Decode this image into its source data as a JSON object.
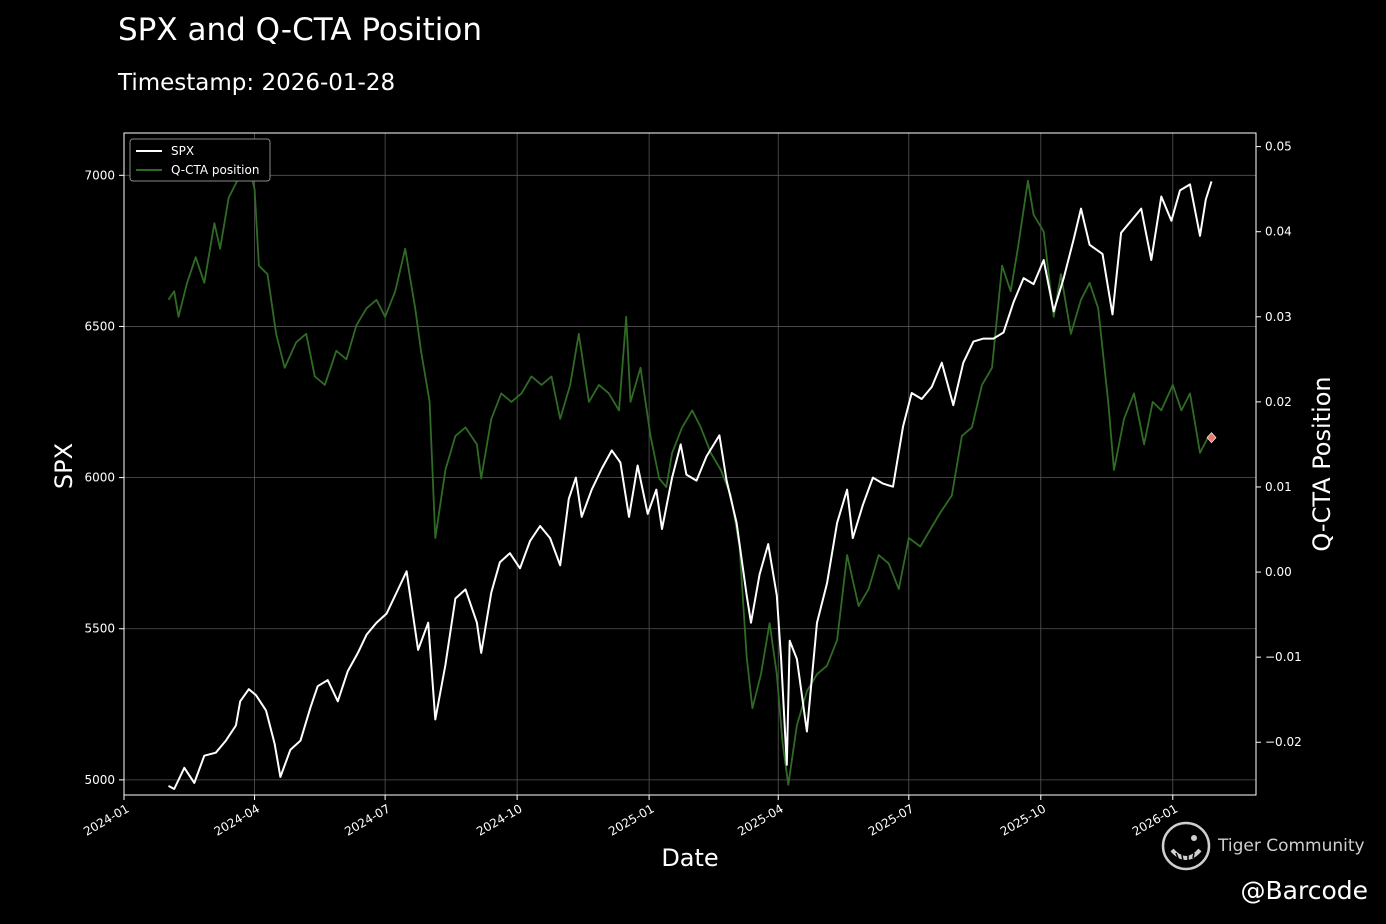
{
  "header": {
    "title": "SPX and Q-CTA Position",
    "subtitle": "Timestamp: 2026-01-28"
  },
  "watermark": {
    "brand": "Tiger Community",
    "handle": "@Barcode",
    "icon": "tiger-logo-icon"
  },
  "chart_data": {
    "type": "line",
    "title": "SPX and Q-CTA Position",
    "subtitle": "Timestamp: 2026-01-28",
    "xlabel": "Date",
    "ylabel": "SPX",
    "y2label": "Q-CTA Position",
    "xlim": [
      "2024-01-01",
      "2026-02-28"
    ],
    "ylim": [
      4950,
      7140
    ],
    "y2lim": [
      -0.0262,
      0.0516
    ],
    "x_ticks": [
      "2024-01",
      "2024-04",
      "2024-07",
      "2024-10",
      "2025-01",
      "2025-04",
      "2025-07",
      "2025-10",
      "2026-01"
    ],
    "y_ticks": [
      5000,
      5500,
      6000,
      6500,
      7000
    ],
    "y2_ticks": [
      -0.02,
      -0.01,
      0.0,
      0.01,
      0.02,
      0.03,
      0.04,
      0.05
    ],
    "grid": true,
    "legend_position": "top-left",
    "series": [
      {
        "name": "SPX",
        "axis": "left",
        "color": "#ffffff",
        "points": [
          [
            "2024-02-01",
            4980
          ],
          [
            "2024-02-05",
            4970
          ],
          [
            "2024-02-12",
            5040
          ],
          [
            "2024-02-19",
            4990
          ],
          [
            "2024-02-26",
            5080
          ],
          [
            "2024-03-05",
            5090
          ],
          [
            "2024-03-12",
            5130
          ],
          [
            "2024-03-19",
            5180
          ],
          [
            "2024-03-22",
            5260
          ],
          [
            "2024-03-28",
            5300
          ],
          [
            "2024-04-02",
            5280
          ],
          [
            "2024-04-09",
            5230
          ],
          [
            "2024-04-15",
            5120
          ],
          [
            "2024-04-19",
            5010
          ],
          [
            "2024-04-26",
            5100
          ],
          [
            "2024-05-03",
            5130
          ],
          [
            "2024-05-10",
            5240
          ],
          [
            "2024-05-15",
            5310
          ],
          [
            "2024-05-22",
            5330
          ],
          [
            "2024-05-29",
            5260
          ],
          [
            "2024-06-05",
            5360
          ],
          [
            "2024-06-12",
            5420
          ],
          [
            "2024-06-18",
            5480
          ],
          [
            "2024-06-25",
            5520
          ],
          [
            "2024-07-02",
            5550
          ],
          [
            "2024-07-09",
            5620
          ],
          [
            "2024-07-16",
            5690
          ],
          [
            "2024-07-24",
            5430
          ],
          [
            "2024-07-31",
            5520
          ],
          [
            "2024-08-05",
            5200
          ],
          [
            "2024-08-12",
            5380
          ],
          [
            "2024-08-19",
            5600
          ],
          [
            "2024-08-26",
            5630
          ],
          [
            "2024-09-03",
            5520
          ],
          [
            "2024-09-06",
            5420
          ],
          [
            "2024-09-13",
            5620
          ],
          [
            "2024-09-19",
            5720
          ],
          [
            "2024-09-26",
            5750
          ],
          [
            "2024-10-03",
            5700
          ],
          [
            "2024-10-10",
            5790
          ],
          [
            "2024-10-17",
            5840
          ],
          [
            "2024-10-24",
            5800
          ],
          [
            "2024-10-31",
            5710
          ],
          [
            "2024-11-06",
            5930
          ],
          [
            "2024-11-11",
            6000
          ],
          [
            "2024-11-15",
            5870
          ],
          [
            "2024-11-22",
            5960
          ],
          [
            "2024-11-29",
            6030
          ],
          [
            "2024-12-06",
            6090
          ],
          [
            "2024-12-12",
            6050
          ],
          [
            "2024-12-18",
            5870
          ],
          [
            "2024-12-24",
            6040
          ],
          [
            "2024-12-31",
            5880
          ],
          [
            "2025-01-06",
            5960
          ],
          [
            "2025-01-10",
            5830
          ],
          [
            "2025-01-17",
            6000
          ],
          [
            "2025-01-23",
            6110
          ],
          [
            "2025-01-27",
            6010
          ],
          [
            "2025-02-03",
            5990
          ],
          [
            "2025-02-10",
            6070
          ],
          [
            "2025-02-19",
            6140
          ],
          [
            "2025-02-24",
            5990
          ],
          [
            "2025-03-03",
            5850
          ],
          [
            "2025-03-10",
            5610
          ],
          [
            "2025-03-13",
            5520
          ],
          [
            "2025-03-19",
            5680
          ],
          [
            "2025-03-25",
            5780
          ],
          [
            "2025-03-31",
            5610
          ],
          [
            "2025-04-03",
            5400
          ],
          [
            "2025-04-07",
            5050
          ],
          [
            "2025-04-09",
            5460
          ],
          [
            "2025-04-14",
            5400
          ],
          [
            "2025-04-21",
            5160
          ],
          [
            "2025-04-28",
            5520
          ],
          [
            "2025-05-05",
            5650
          ],
          [
            "2025-05-12",
            5850
          ],
          [
            "2025-05-19",
            5960
          ],
          [
            "2025-05-23",
            5800
          ],
          [
            "2025-05-30",
            5910
          ],
          [
            "2025-06-06",
            6000
          ],
          [
            "2025-06-13",
            5980
          ],
          [
            "2025-06-20",
            5970
          ],
          [
            "2025-06-27",
            6170
          ],
          [
            "2025-07-03",
            6280
          ],
          [
            "2025-07-10",
            6260
          ],
          [
            "2025-07-17",
            6300
          ],
          [
            "2025-07-24",
            6380
          ],
          [
            "2025-08-01",
            6240
          ],
          [
            "2025-08-08",
            6380
          ],
          [
            "2025-08-15",
            6450
          ],
          [
            "2025-08-22",
            6460
          ],
          [
            "2025-08-29",
            6460
          ],
          [
            "2025-09-05",
            6480
          ],
          [
            "2025-09-12",
            6580
          ],
          [
            "2025-09-19",
            6660
          ],
          [
            "2025-09-26",
            6640
          ],
          [
            "2025-10-03",
            6720
          ],
          [
            "2025-10-10",
            6550
          ],
          [
            "2025-10-17",
            6660
          ],
          [
            "2025-10-24",
            6790
          ],
          [
            "2025-10-29",
            6890
          ],
          [
            "2025-11-04",
            6770
          ],
          [
            "2025-11-13",
            6740
          ],
          [
            "2025-11-20",
            6540
          ],
          [
            "2025-11-26",
            6810
          ],
          [
            "2025-12-03",
            6850
          ],
          [
            "2025-12-10",
            6890
          ],
          [
            "2025-12-17",
            6720
          ],
          [
            "2025-12-24",
            6930
          ],
          [
            "2025-12-31",
            6850
          ],
          [
            "2026-01-06",
            6950
          ],
          [
            "2026-01-13",
            6970
          ],
          [
            "2026-01-20",
            6800
          ],
          [
            "2026-01-24",
            6920
          ],
          [
            "2026-01-28",
            6980
          ]
        ]
      },
      {
        "name": "Q-CTA position",
        "axis": "right",
        "color": "#2f6b25",
        "points": [
          [
            "2024-02-01",
            0.032
          ],
          [
            "2024-02-05",
            0.033
          ],
          [
            "2024-02-08",
            0.03
          ],
          [
            "2024-02-14",
            0.034
          ],
          [
            "2024-02-20",
            0.037
          ],
          [
            "2024-02-26",
            0.034
          ],
          [
            "2024-03-04",
            0.041
          ],
          [
            "2024-03-08",
            0.038
          ],
          [
            "2024-03-14",
            0.044
          ],
          [
            "2024-03-20",
            0.046
          ],
          [
            "2024-03-26",
            0.049
          ],
          [
            "2024-04-01",
            0.045
          ],
          [
            "2024-04-04",
            0.036
          ],
          [
            "2024-04-10",
            0.035
          ],
          [
            "2024-04-16",
            0.028
          ],
          [
            "2024-04-22",
            0.024
          ],
          [
            "2024-04-30",
            0.027
          ],
          [
            "2024-05-07",
            0.028
          ],
          [
            "2024-05-13",
            0.023
          ],
          [
            "2024-05-20",
            0.022
          ],
          [
            "2024-05-28",
            0.026
          ],
          [
            "2024-06-04",
            0.025
          ],
          [
            "2024-06-11",
            0.029
          ],
          [
            "2024-06-18",
            0.031
          ],
          [
            "2024-06-25",
            0.032
          ],
          [
            "2024-07-01",
            0.03
          ],
          [
            "2024-07-08",
            0.033
          ],
          [
            "2024-07-15",
            0.038
          ],
          [
            "2024-07-22",
            0.031
          ],
          [
            "2024-07-26",
            0.026
          ],
          [
            "2024-08-01",
            0.02
          ],
          [
            "2024-08-05",
            0.004
          ],
          [
            "2024-08-12",
            0.012
          ],
          [
            "2024-08-19",
            0.016
          ],
          [
            "2024-08-26",
            0.017
          ],
          [
            "2024-09-03",
            0.015
          ],
          [
            "2024-09-06",
            0.011
          ],
          [
            "2024-09-13",
            0.018
          ],
          [
            "2024-09-20",
            0.021
          ],
          [
            "2024-09-27",
            0.02
          ],
          [
            "2024-10-04",
            0.021
          ],
          [
            "2024-10-11",
            0.023
          ],
          [
            "2024-10-18",
            0.022
          ],
          [
            "2024-10-25",
            0.023
          ],
          [
            "2024-10-31",
            0.018
          ],
          [
            "2024-11-07",
            0.022
          ],
          [
            "2024-11-13",
            0.028
          ],
          [
            "2024-11-20",
            0.02
          ],
          [
            "2024-11-27",
            0.022
          ],
          [
            "2024-12-04",
            0.021
          ],
          [
            "2024-12-11",
            0.019
          ],
          [
            "2024-12-16",
            0.03
          ],
          [
            "2024-12-19",
            0.02
          ],
          [
            "2024-12-26",
            0.024
          ],
          [
            "2025-01-02",
            0.016
          ],
          [
            "2025-01-08",
            0.011
          ],
          [
            "2025-01-13",
            0.01
          ],
          [
            "2025-01-17",
            0.014
          ],
          [
            "2025-01-24",
            0.017
          ],
          [
            "2025-01-31",
            0.019
          ],
          [
            "2025-02-06",
            0.017
          ],
          [
            "2025-02-13",
            0.014
          ],
          [
            "2025-02-20",
            0.012
          ],
          [
            "2025-02-27",
            0.009
          ],
          [
            "2025-03-05",
            0.003
          ],
          [
            "2025-03-10",
            -0.01
          ],
          [
            "2025-03-14",
            -0.016
          ],
          [
            "2025-03-20",
            -0.012
          ],
          [
            "2025-03-26",
            -0.006
          ],
          [
            "2025-03-31",
            -0.012
          ],
          [
            "2025-04-04",
            -0.02
          ],
          [
            "2025-04-08",
            -0.025
          ],
          [
            "2025-04-14",
            -0.018
          ],
          [
            "2025-04-21",
            -0.014
          ],
          [
            "2025-04-28",
            -0.012
          ],
          [
            "2025-05-05",
            -0.011
          ],
          [
            "2025-05-12",
            -0.008
          ],
          [
            "2025-05-19",
            0.002
          ],
          [
            "2025-05-27",
            -0.004
          ],
          [
            "2025-06-03",
            -0.002
          ],
          [
            "2025-06-10",
            0.002
          ],
          [
            "2025-06-17",
            0.001
          ],
          [
            "2025-06-24",
            -0.002
          ],
          [
            "2025-07-01",
            0.004
          ],
          [
            "2025-07-09",
            0.003
          ],
          [
            "2025-07-16",
            0.005
          ],
          [
            "2025-07-23",
            0.007
          ],
          [
            "2025-07-31",
            0.009
          ],
          [
            "2025-08-07",
            0.016
          ],
          [
            "2025-08-14",
            0.017
          ],
          [
            "2025-08-21",
            0.022
          ],
          [
            "2025-08-28",
            0.024
          ],
          [
            "2025-09-04",
            0.036
          ],
          [
            "2025-09-10",
            0.033
          ],
          [
            "2025-09-15",
            0.038
          ],
          [
            "2025-09-22",
            0.046
          ],
          [
            "2025-09-26",
            0.042
          ],
          [
            "2025-10-03",
            0.04
          ],
          [
            "2025-10-10",
            0.03
          ],
          [
            "2025-10-15",
            0.035
          ],
          [
            "2025-10-22",
            0.028
          ],
          [
            "2025-10-29",
            0.032
          ],
          [
            "2025-11-04",
            0.034
          ],
          [
            "2025-11-10",
            0.031
          ],
          [
            "2025-11-17",
            0.02
          ],
          [
            "2025-11-21",
            0.012
          ],
          [
            "2025-11-28",
            0.018
          ],
          [
            "2025-12-05",
            0.021
          ],
          [
            "2025-12-12",
            0.015
          ],
          [
            "2025-12-18",
            0.02
          ],
          [
            "2025-12-24",
            0.019
          ],
          [
            "2026-01-01",
            0.022
          ],
          [
            "2026-01-07",
            0.019
          ],
          [
            "2026-01-13",
            0.021
          ],
          [
            "2026-01-20",
            0.014
          ],
          [
            "2026-01-26",
            0.016
          ]
        ]
      }
    ],
    "marker": {
      "date": "2026-01-28",
      "value": 0.0158,
      "axis": "right",
      "shape": "diamond",
      "color": "#e87a6e"
    }
  }
}
